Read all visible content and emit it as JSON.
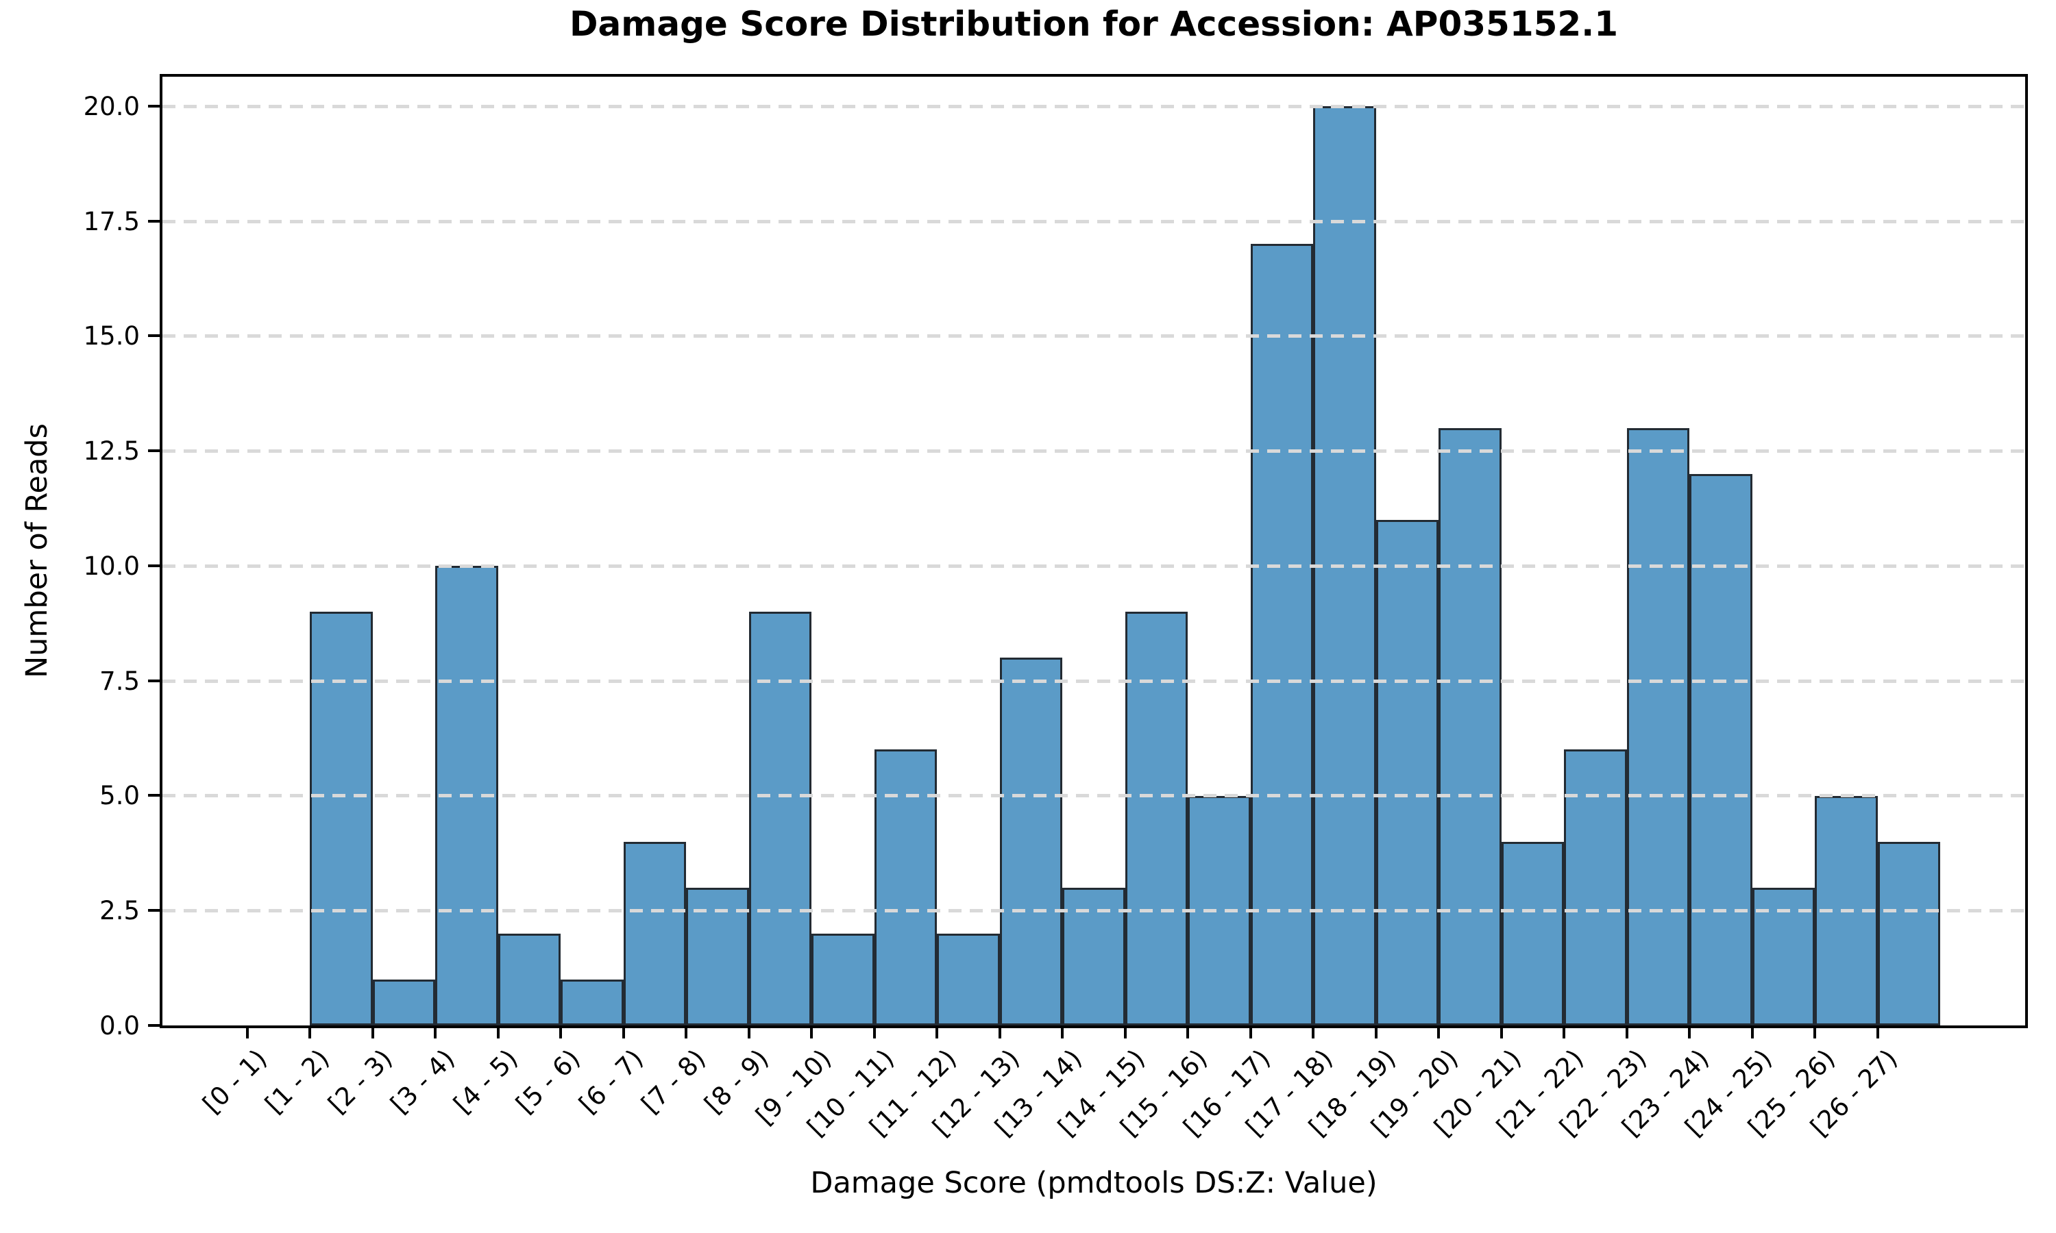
{
  "chart_data": {
    "type": "bar",
    "title": "Damage Score Distribution for Accession: AP035152.1",
    "xlabel": "Damage Score (pmdtools DS:Z: Value)",
    "ylabel": "Number of Reads",
    "categories": [
      "[0 - 1)",
      "[1 - 2)",
      "[2 - 3)",
      "[3 - 4)",
      "[4 - 5)",
      "[5 - 6)",
      "[6 - 7)",
      "[7 - 8)",
      "[8 - 9)",
      "[9 - 10)",
      "[10 - 11)",
      "[11 - 12)",
      "[12 - 13)",
      "[13 - 14)",
      "[14 - 15)",
      "[15 - 16)",
      "[16 - 17)",
      "[17 - 18)",
      "[18 - 19)",
      "[19 - 20)",
      "[20 - 21)",
      "[21 - 22)",
      "[22 - 23)",
      "[23 - 24)",
      "[24 - 25)",
      "[25 - 26)",
      "[26 - 27)"
    ],
    "values": [
      0,
      9,
      1,
      10,
      2,
      1,
      4,
      3,
      9,
      2,
      6,
      2,
      8,
      3,
      9,
      5,
      17,
      20,
      11,
      13,
      4,
      6,
      13,
      12,
      3,
      5,
      4
    ],
    "yticks": [
      0,
      2.5,
      5,
      7.5,
      10,
      12.5,
      15,
      17.5,
      20
    ],
    "ytick_labels": [
      "0.0",
      "2.5",
      "5.0",
      "7.5",
      "10.0",
      "12.5",
      "15.0",
      "17.5",
      "20.0"
    ],
    "ylim": [
      0,
      20.64
    ],
    "bar_alignment": "edge",
    "grid": "horizontal-dashed",
    "legend_position": "none",
    "colors": {
      "bar_fill": "#5B9BC7",
      "bar_edge": "#232b33",
      "grid": "#d9d9d9",
      "text": "#000000",
      "background": "#ffffff"
    }
  }
}
